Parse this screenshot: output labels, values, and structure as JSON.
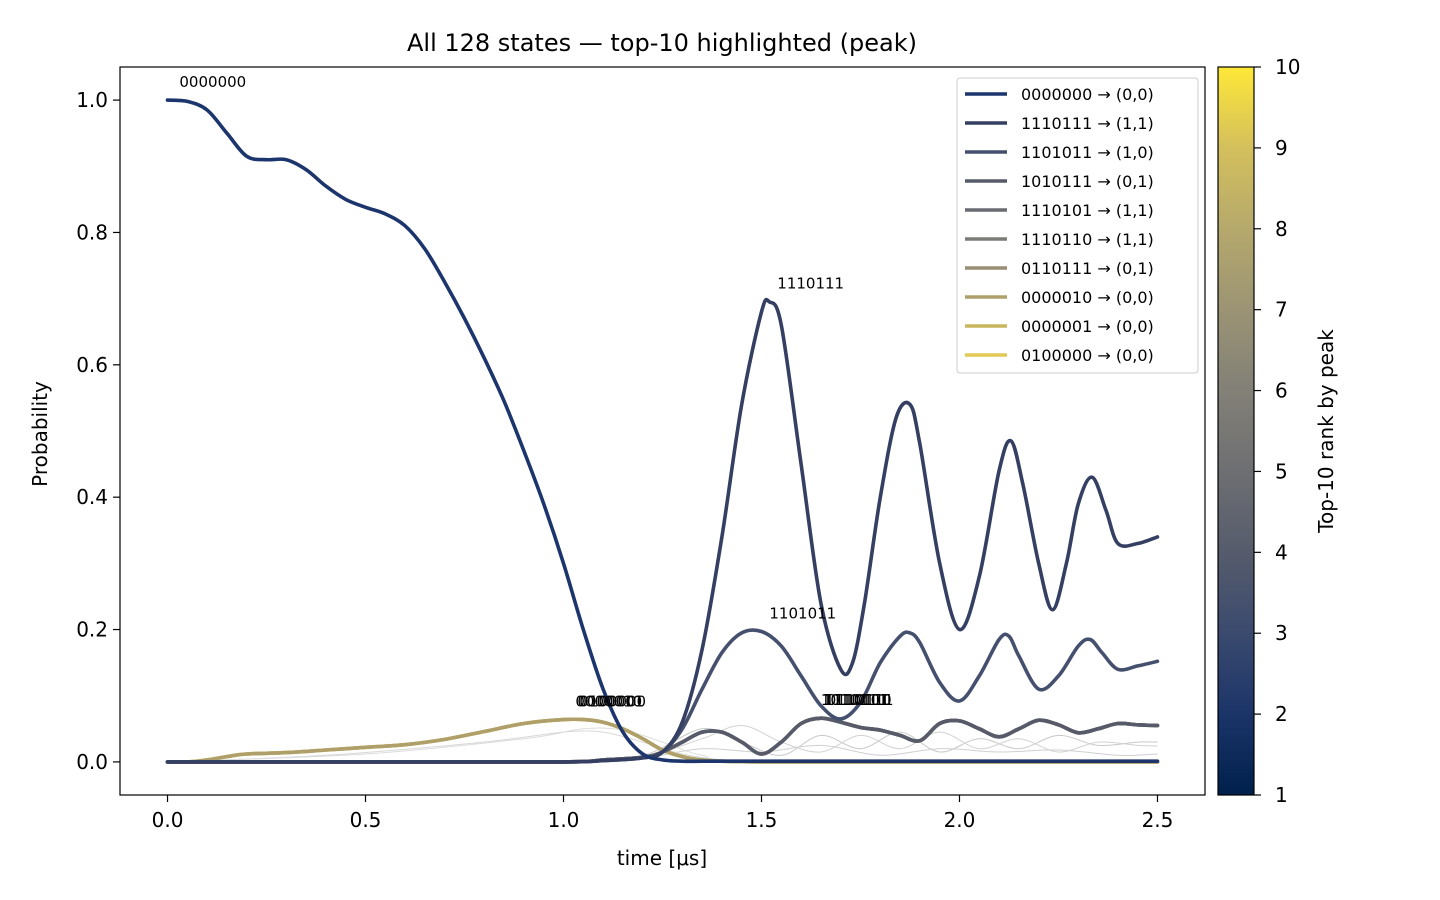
{
  "chart_data": {
    "type": "line",
    "title": "All 128 states — top-10 highlighted (peak)",
    "xlabel": "time [μs]",
    "ylabel": "Probability",
    "xlim": [
      -0.12,
      2.62
    ],
    "ylim": [
      -0.05,
      1.05
    ],
    "xticks": [
      "0.0",
      "0.5",
      "1.0",
      "1.5",
      "2.0",
      "2.5"
    ],
    "yticks": [
      "0.0",
      "0.2",
      "0.4",
      "0.6",
      "0.8",
      "1.0"
    ],
    "legend_position": "top-right",
    "grid": false,
    "colorbar": {
      "label": "Top-10 rank by peak",
      "min": 1,
      "max": 10,
      "ticks": [
        "1",
        "2",
        "3",
        "4",
        "5",
        "6",
        "7",
        "8",
        "9",
        "10"
      ],
      "colormap": "cividis"
    },
    "series": [
      {
        "name": "0000000 → (0,0)",
        "color": "#1c356d",
        "x": [
          0,
          0.05,
          0.1,
          0.15,
          0.2,
          0.25,
          0.3,
          0.35,
          0.4,
          0.45,
          0.5,
          0.55,
          0.6,
          0.65,
          0.7,
          0.75,
          0.8,
          0.85,
          0.9,
          0.95,
          1.0,
          1.05,
          1.1,
          1.15,
          1.2,
          1.25,
          1.3,
          1.35,
          1.4,
          1.45,
          1.5,
          1.55,
          1.6,
          1.65,
          1.7,
          1.75,
          1.8,
          1.85,
          1.9,
          1.95,
          2.0,
          2.05,
          2.1,
          2.15,
          2.2,
          2.25,
          2.3,
          2.35,
          2.4,
          2.45,
          2.5
        ],
        "y": [
          1.0,
          0.998,
          0.985,
          0.95,
          0.915,
          0.91,
          0.91,
          0.895,
          0.87,
          0.85,
          0.838,
          0.828,
          0.81,
          0.775,
          0.725,
          0.67,
          0.61,
          0.545,
          0.47,
          0.39,
          0.3,
          0.2,
          0.11,
          0.045,
          0.012,
          0.003,
          0.001,
          0.001,
          0.001,
          0.001,
          0.001,
          0.001,
          0.001,
          0.001,
          0.001,
          0.001,
          0.001,
          0.001,
          0.001,
          0.001,
          0.001,
          0.001,
          0.001,
          0.001,
          0.001,
          0.001,
          0.001,
          0.001,
          0.001,
          0.001,
          0.001
        ]
      },
      {
        "name": "1110111 → (1,1)",
        "color": "#343f62",
        "x": [
          0,
          0.5,
          1.0,
          1.1,
          1.2,
          1.25,
          1.3,
          1.35,
          1.4,
          1.45,
          1.5,
          1.52,
          1.55,
          1.6,
          1.65,
          1.7,
          1.73,
          1.76,
          1.8,
          1.84,
          1.875,
          1.9,
          1.95,
          2.0,
          2.05,
          2.1,
          2.13,
          2.16,
          2.2,
          2.235,
          2.27,
          2.3,
          2.335,
          2.37,
          2.4,
          2.45,
          2.5
        ],
        "y": [
          0,
          0,
          0,
          0.002,
          0.006,
          0.015,
          0.06,
          0.17,
          0.34,
          0.54,
          0.68,
          0.695,
          0.66,
          0.45,
          0.24,
          0.14,
          0.15,
          0.24,
          0.4,
          0.52,
          0.54,
          0.48,
          0.3,
          0.2,
          0.28,
          0.44,
          0.485,
          0.42,
          0.3,
          0.23,
          0.3,
          0.39,
          0.43,
          0.38,
          0.33,
          0.33,
          0.34
        ]
      },
      {
        "name": "1101011 → (1,0)",
        "color": "#45506e",
        "x": [
          0,
          0.5,
          1.0,
          1.1,
          1.2,
          1.25,
          1.3,
          1.35,
          1.4,
          1.45,
          1.5,
          1.55,
          1.6,
          1.65,
          1.7,
          1.75,
          1.8,
          1.85,
          1.875,
          1.9,
          1.95,
          2.0,
          2.05,
          2.1,
          2.125,
          2.15,
          2.2,
          2.25,
          2.3,
          2.33,
          2.36,
          2.4,
          2.45,
          2.5
        ],
        "y": [
          0,
          0,
          0,
          0.002,
          0.006,
          0.015,
          0.05,
          0.11,
          0.165,
          0.195,
          0.197,
          0.175,
          0.13,
          0.085,
          0.065,
          0.09,
          0.15,
          0.19,
          0.195,
          0.18,
          0.12,
          0.092,
          0.13,
          0.185,
          0.19,
          0.16,
          0.11,
          0.13,
          0.175,
          0.185,
          0.165,
          0.14,
          0.145,
          0.152
        ]
      },
      {
        "name": "1010111 → (0,1)",
        "color": "#575b69",
        "x": [
          0,
          0.5,
          1.0,
          1.1,
          1.2,
          1.25,
          1.3,
          1.35,
          1.4,
          1.45,
          1.5,
          1.55,
          1.6,
          1.65,
          1.7,
          1.75,
          1.8,
          1.85,
          1.9,
          1.95,
          2.0,
          2.05,
          2.1,
          2.15,
          2.2,
          2.25,
          2.3,
          2.35,
          2.4,
          2.45,
          2.5
        ],
        "y": [
          0,
          0,
          0,
          0.003,
          0.007,
          0.015,
          0.03,
          0.045,
          0.045,
          0.03,
          0.012,
          0.03,
          0.058,
          0.066,
          0.06,
          0.052,
          0.048,
          0.04,
          0.032,
          0.058,
          0.062,
          0.05,
          0.038,
          0.05,
          0.063,
          0.056,
          0.044,
          0.05,
          0.058,
          0.056,
          0.055
        ]
      },
      {
        "name": "1110101 → (1,1)",
        "color": "#686b72",
        "x": [
          0,
          0.5,
          1.0,
          1.1,
          1.2,
          1.25,
          1.3,
          1.35,
          1.4,
          1.45,
          1.5,
          1.55,
          1.6,
          1.65,
          1.7,
          1.75,
          1.8,
          1.85,
          1.9,
          1.95,
          2.0,
          2.05,
          2.1,
          2.15,
          2.2,
          2.25,
          2.3,
          2.35,
          2.4,
          2.45,
          2.5
        ],
        "y": [
          0,
          0,
          0,
          0.003,
          0.007,
          0.015,
          0.03,
          0.045,
          0.045,
          0.03,
          0.012,
          0.03,
          0.058,
          0.066,
          0.06,
          0.052,
          0.048,
          0.04,
          0.032,
          0.058,
          0.062,
          0.05,
          0.038,
          0.05,
          0.063,
          0.056,
          0.044,
          0.05,
          0.058,
          0.056,
          0.055
        ]
      },
      {
        "name": "1110110 → (1,1)",
        "color": "#7c7b78",
        "x": [
          0,
          0.5,
          1.0,
          1.1,
          1.2,
          1.25,
          1.3,
          1.35,
          1.4,
          1.45,
          1.5,
          1.55,
          1.6,
          1.65,
          1.7,
          1.75,
          1.8,
          1.85,
          1.9,
          1.95,
          2.0,
          2.05,
          2.1,
          2.15,
          2.2,
          2.25,
          2.3,
          2.35,
          2.4,
          2.45,
          2.5
        ],
        "y": [
          0,
          0,
          0,
          0.003,
          0.007,
          0.015,
          0.03,
          0.045,
          0.045,
          0.03,
          0.012,
          0.03,
          0.058,
          0.066,
          0.06,
          0.052,
          0.048,
          0.04,
          0.032,
          0.058,
          0.062,
          0.05,
          0.038,
          0.05,
          0.063,
          0.056,
          0.044,
          0.05,
          0.058,
          0.056,
          0.055
        ]
      },
      {
        "name": "0110111 → (0,1)",
        "color": "#978e73",
        "x": [
          0,
          0.5,
          1.0,
          1.1,
          1.2,
          1.25,
          1.3,
          1.35,
          1.4,
          1.45,
          1.5,
          1.55,
          1.6,
          1.65,
          1.7,
          1.75,
          1.8,
          1.85,
          1.9,
          1.95,
          2.0,
          2.05,
          2.1,
          2.15,
          2.2,
          2.25,
          2.3,
          2.35,
          2.4,
          2.45,
          2.5
        ],
        "y": [
          0,
          0,
          0,
          0.003,
          0.007,
          0.015,
          0.03,
          0.045,
          0.045,
          0.03,
          0.012,
          0.03,
          0.058,
          0.066,
          0.06,
          0.052,
          0.048,
          0.04,
          0.032,
          0.058,
          0.062,
          0.05,
          0.038,
          0.05,
          0.063,
          0.056,
          0.044,
          0.05,
          0.058,
          0.056,
          0.055
        ]
      },
      {
        "name": "0000010 → (0,0)",
        "color": "#afa06b",
        "x": [
          0,
          0.05,
          0.1,
          0.15,
          0.2,
          0.3,
          0.4,
          0.5,
          0.6,
          0.7,
          0.8,
          0.9,
          1.0,
          1.05,
          1.1,
          1.15,
          1.2,
          1.25,
          1.3,
          1.35,
          1.4,
          1.5,
          1.6,
          1.8,
          2.0,
          2.2,
          2.5
        ],
        "y": [
          0,
          0,
          0.003,
          0.008,
          0.012,
          0.014,
          0.018,
          0.022,
          0.026,
          0.034,
          0.046,
          0.058,
          0.064,
          0.064,
          0.06,
          0.05,
          0.035,
          0.018,
          0.008,
          0.003,
          0.001,
          0,
          0,
          0,
          0,
          0,
          0
        ]
      },
      {
        "name": "0000001 → (0,0)",
        "color": "#c9b55b",
        "x": [
          0,
          0.05,
          0.1,
          0.15,
          0.2,
          0.3,
          0.4,
          0.5,
          0.6,
          0.7,
          0.8,
          0.9,
          1.0,
          1.05,
          1.1,
          1.15,
          1.2,
          1.25,
          1.3,
          1.35,
          1.4,
          1.5,
          1.6,
          1.8,
          2.0,
          2.2,
          2.5
        ],
        "y": [
          0,
          0,
          0.003,
          0.008,
          0.012,
          0.014,
          0.018,
          0.022,
          0.026,
          0.034,
          0.046,
          0.058,
          0.064,
          0.064,
          0.06,
          0.05,
          0.035,
          0.018,
          0.008,
          0.003,
          0.001,
          0,
          0,
          0,
          0,
          0,
          0
        ]
      },
      {
        "name": "0100000 → (0,0)",
        "color": "#e2c955",
        "x": [
          0,
          0.05,
          0.1,
          0.15,
          0.2,
          0.3,
          0.4,
          0.5,
          0.6,
          0.7,
          0.8,
          0.9,
          1.0,
          1.05,
          1.1,
          1.15,
          1.2,
          1.25,
          1.3,
          1.35,
          1.4,
          1.5,
          1.6,
          1.8,
          2.0,
          2.2,
          2.5
        ],
        "y": [
          0,
          0,
          0.003,
          0.008,
          0.012,
          0.014,
          0.018,
          0.022,
          0.026,
          0.034,
          0.046,
          0.058,
          0.064,
          0.064,
          0.06,
          0.05,
          0.035,
          0.018,
          0.008,
          0.003,
          0.001,
          0,
          0,
          0,
          0,
          0,
          0
        ]
      }
    ],
    "background_series": [
      {
        "color": "#c8c8c8",
        "x": [
          0,
          1.0,
          1.2,
          1.35,
          1.45,
          1.55,
          1.65,
          1.75,
          1.85,
          1.95,
          2.05,
          2.15,
          2.25,
          2.35,
          2.45,
          2.5
        ],
        "y": [
          0,
          0,
          0.01,
          0.05,
          0.03,
          0.01,
          0.04,
          0.02,
          0.045,
          0.015,
          0.035,
          0.02,
          0.04,
          0.025,
          0.03,
          0.03
        ]
      },
      {
        "color": "#d2d2d2",
        "x": [
          0,
          1.0,
          1.2,
          1.35,
          1.45,
          1.55,
          1.65,
          1.75,
          1.85,
          1.95,
          2.05,
          2.15,
          2.25,
          2.35,
          2.45,
          2.5
        ],
        "y": [
          0,
          0,
          0.008,
          0.035,
          0.055,
          0.03,
          0.015,
          0.04,
          0.02,
          0.045,
          0.02,
          0.035,
          0.015,
          0.03,
          0.025,
          0.024
        ]
      },
      {
        "color": "#cfcfcf",
        "x": [
          0,
          1.0,
          1.2,
          1.35,
          1.5,
          1.65,
          1.8,
          1.95,
          2.1,
          2.25,
          2.4,
          2.5
        ],
        "y": [
          0,
          0,
          0.006,
          0.02,
          0.015,
          0.025,
          0.01,
          0.02,
          0.015,
          0.018,
          0.01,
          0.012
        ]
      },
      {
        "color": "#d8d8d8",
        "x": [
          0,
          0.4,
          0.8,
          1.0,
          1.1,
          1.2,
          1.3,
          1.4,
          1.5,
          2.5
        ],
        "y": [
          0,
          0.01,
          0.03,
          0.045,
          0.045,
          0.03,
          0.012,
          0.003,
          0,
          0
        ]
      },
      {
        "color": "#dcdcdc",
        "x": [
          0,
          0.5,
          0.9,
          1.05,
          1.15,
          1.25,
          1.35,
          1.5,
          2.5
        ],
        "y": [
          0,
          0.012,
          0.035,
          0.05,
          0.048,
          0.03,
          0.01,
          0.002,
          0
        ]
      }
    ],
    "annotations": [
      {
        "text": "0000000",
        "x": 0.03,
        "y": 1.02
      },
      {
        "text": "1110111",
        "x": 1.54,
        "y": 0.715
      },
      {
        "text": "1101011",
        "x": 1.52,
        "y": 0.217
      },
      {
        "text": "0000010",
        "x": 1.03,
        "y": 0.084
      },
      {
        "text": "0000001",
        "x": 1.035,
        "y": 0.084
      },
      {
        "text": "0100000",
        "x": 1.04,
        "y": 0.084
      },
      {
        "text": "1010111",
        "x": 1.65,
        "y": 0.086
      },
      {
        "text": "1110101",
        "x": 1.655,
        "y": 0.086
      },
      {
        "text": "1110110",
        "x": 1.66,
        "y": 0.086
      },
      {
        "text": "0110111",
        "x": 1.665,
        "y": 0.086
      }
    ]
  }
}
